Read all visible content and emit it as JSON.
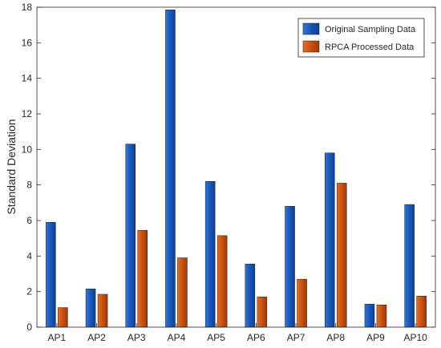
{
  "chart_data": {
    "type": "bar",
    "title": "",
    "xlabel": "",
    "ylabel": "Standard Deviation",
    "ylim": [
      0,
      18
    ],
    "yticks": [
      0,
      2,
      4,
      6,
      8,
      10,
      12,
      14,
      16,
      18
    ],
    "grid": false,
    "legend_position": "top-right",
    "categories": [
      "AP1",
      "AP2",
      "AP3",
      "AP4",
      "AP5",
      "AP6",
      "AP7",
      "AP8",
      "AP9",
      "AP10"
    ],
    "series": [
      {
        "name": "Original Sampling Data",
        "color": "#1f5fbf",
        "values": [
          5.9,
          2.15,
          10.3,
          17.85,
          8.2,
          3.55,
          6.8,
          9.8,
          1.3,
          6.9
        ]
      },
      {
        "name": "RPCA Processed Data",
        "color": "#d45a12",
        "values": [
          1.1,
          1.85,
          5.45,
          3.9,
          5.15,
          1.7,
          2.7,
          8.1,
          1.25,
          1.75
        ]
      }
    ]
  }
}
